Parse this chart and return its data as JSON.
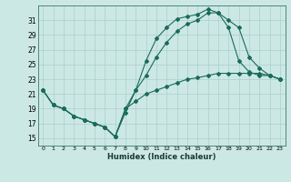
{
  "xlabel": "Humidex (Indice chaleur)",
  "bg_color": "#cce8e4",
  "line_color": "#1a6b5a",
  "grid_color": "#aacfca",
  "xlim": [
    -0.5,
    23.5
  ],
  "ylim": [
    14,
    33
  ],
  "yticks": [
    15,
    17,
    19,
    21,
    23,
    25,
    27,
    29,
    31
  ],
  "xticks": [
    0,
    1,
    2,
    3,
    4,
    5,
    6,
    7,
    8,
    9,
    10,
    11,
    12,
    13,
    14,
    15,
    16,
    17,
    18,
    19,
    20,
    21,
    22,
    23
  ],
  "line1_x": [
    0,
    1,
    2,
    3,
    4,
    5,
    6,
    7,
    8,
    9,
    10,
    11,
    12,
    13,
    14,
    15,
    16,
    17,
    18,
    19,
    20,
    21,
    22,
    23
  ],
  "line1_y": [
    21.5,
    19.5,
    19.0,
    18.0,
    17.5,
    17.0,
    16.5,
    15.2,
    18.5,
    21.5,
    25.5,
    28.5,
    30.0,
    31.2,
    31.5,
    31.8,
    32.5,
    32.0,
    31.0,
    30.0,
    26.0,
    24.5,
    23.5,
    23.0
  ],
  "line2_x": [
    0,
    1,
    2,
    3,
    4,
    5,
    6,
    7,
    8,
    9,
    10,
    11,
    12,
    13,
    14,
    15,
    16,
    17,
    18,
    19,
    20,
    21,
    22,
    23
  ],
  "line2_y": [
    21.5,
    19.5,
    19.0,
    18.0,
    17.5,
    17.0,
    16.5,
    15.2,
    19.0,
    21.5,
    23.5,
    26.0,
    28.0,
    29.5,
    30.5,
    31.0,
    32.0,
    32.0,
    30.0,
    25.5,
    24.0,
    23.5,
    23.5,
    23.0
  ],
  "line3_x": [
    0,
    1,
    2,
    3,
    4,
    5,
    6,
    7,
    8,
    9,
    10,
    11,
    12,
    13,
    14,
    15,
    16,
    17,
    18,
    19,
    20,
    21,
    22,
    23
  ],
  "line3_y": [
    21.5,
    19.5,
    19.0,
    18.0,
    17.5,
    17.0,
    16.5,
    15.2,
    19.0,
    20.0,
    21.0,
    21.5,
    22.0,
    22.5,
    23.0,
    23.2,
    23.5,
    23.8,
    23.8,
    23.8,
    23.8,
    23.8,
    23.5,
    23.0
  ]
}
